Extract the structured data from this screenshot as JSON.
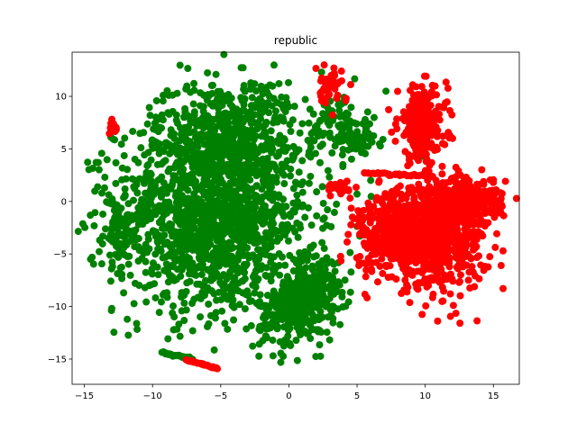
{
  "chart_data": {
    "type": "scatter",
    "title": "republic",
    "xlabel": "",
    "ylabel": "",
    "xlim": [
      -15.9,
      16.9
    ],
    "ylim": [
      -17.4,
      14.2
    ],
    "x_ticks": [
      -15,
      -10,
      -5,
      0,
      5,
      10,
      15
    ],
    "y_ticks": [
      -15,
      -10,
      -5,
      0,
      5,
      10
    ],
    "grid": false,
    "legend": "none",
    "series": [
      {
        "color": "#008000",
        "clusters": [
          {
            "cx": -5.5,
            "cy": -1.5,
            "sx": 3.6,
            "sy": 4.6,
            "n": 1500
          },
          {
            "cx": -5.0,
            "cy": 6.5,
            "sx": 2.6,
            "sy": 2.6,
            "n": 350
          },
          {
            "cx": 0.5,
            "cy": -10.5,
            "sx": 1.4,
            "sy": 1.6,
            "n": 260
          },
          {
            "cx": 2.2,
            "cy": -7.5,
            "sx": 0.9,
            "sy": 1.4,
            "n": 120
          },
          {
            "cx": 3.5,
            "cy": 7.0,
            "sx": 1.0,
            "sy": 1.6,
            "n": 90
          },
          {
            "cx": 5.3,
            "cy": 6.0,
            "sx": 0.7,
            "sy": 0.9,
            "n": 40
          },
          {
            "cx": -12.5,
            "cy": -3.0,
            "sx": 0.8,
            "sy": 2.5,
            "n": 60
          },
          {
            "cx": -3.0,
            "cy": 8.5,
            "sx": 1.5,
            "sy": 1.5,
            "n": 80
          }
        ],
        "lines": [
          {
            "x0": -9.3,
            "y0": -14.4,
            "x1": -7.0,
            "y1": -15.0,
            "n": 30
          }
        ],
        "points": [
          [
            2.4,
            12.3
          ],
          [
            9.8,
            4.3
          ],
          [
            7.6,
            0.6
          ],
          [
            8.3,
            0.6
          ],
          [
            10.1,
            -0.3
          ],
          [
            10.8,
            -0.7
          ],
          [
            10.4,
            -2.8
          ],
          [
            5.0,
            0.7
          ],
          [
            6.0,
            2.0
          ],
          [
            5.2,
            -3.3
          ],
          [
            -13.5,
            2.3
          ],
          [
            1.2,
            9.7
          ],
          [
            4.6,
            5.2
          ]
        ]
      },
      {
        "color": "#ff0000",
        "clusters": [
          {
            "cx": 9.8,
            "cy": 7.3,
            "sx": 0.9,
            "sy": 1.8,
            "n": 250
          },
          {
            "cx": 10.5,
            "cy": -3.5,
            "sx": 2.0,
            "sy": 2.3,
            "n": 700
          },
          {
            "cx": 12.5,
            "cy": 0.0,
            "sx": 1.6,
            "sy": 1.2,
            "n": 220
          },
          {
            "cx": 7.5,
            "cy": -3.0,
            "sx": 1.4,
            "sy": 1.8,
            "n": 220
          },
          {
            "cx": 2.9,
            "cy": 10.8,
            "sx": 0.5,
            "sy": 0.9,
            "n": 45
          },
          {
            "cx": 3.8,
            "cy": 1.3,
            "sx": 0.6,
            "sy": 0.3,
            "n": 25
          },
          {
            "cx": -12.9,
            "cy": 7.0,
            "sx": 0.15,
            "sy": 0.3,
            "n": 12
          },
          {
            "cx": 14.0,
            "cy": 0.5,
            "sx": 0.9,
            "sy": 0.8,
            "n": 60
          }
        ],
        "lines": [
          {
            "x0": -7.5,
            "y0": -15.1,
            "x1": -5.2,
            "y1": -15.9,
            "n": 25
          },
          {
            "x0": 5.5,
            "y0": 2.7,
            "x1": 10.5,
            "y1": 2.4,
            "n": 40
          }
        ],
        "points": [
          [
            3.5,
            9.8
          ],
          [
            4.2,
            9.8
          ],
          [
            15.2,
            1.1
          ],
          [
            13.0,
            2.3
          ]
        ]
      }
    ]
  }
}
